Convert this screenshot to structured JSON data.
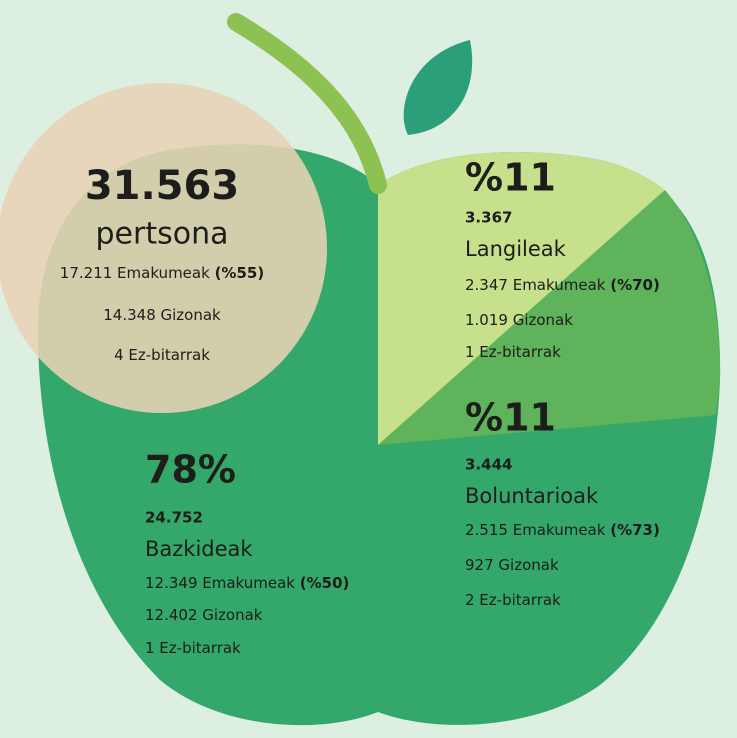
{
  "total": {
    "number": "31.563",
    "unit": "pertsona",
    "lines": [
      {
        "text": "17.211 Emakumeak",
        "bold": "(%55)"
      },
      {
        "text": "14.348 Gizonak"
      },
      {
        "text": "4 Ez-bitarrak"
      }
    ]
  },
  "groups": [
    {
      "percent": "%11",
      "count": "3.367",
      "label": "Langileak",
      "lines": [
        {
          "text": "2.347 Emakumeak",
          "bold": "(%70)"
        },
        {
          "text": "1.019 Gizonak"
        },
        {
          "text": "1 Ez-bitarrak"
        }
      ]
    },
    {
      "percent": "%11",
      "count": "3.444",
      "label": "Boluntarioak",
      "lines": [
        {
          "text": "2.515 Emakumeak",
          "bold": "(%73)"
        },
        {
          "text": "927 Gizonak"
        },
        {
          "text": "2 Ez-bitarrak"
        }
      ]
    },
    {
      "percent": "78%",
      "count": "24.752",
      "label": "Bazkideak",
      "lines": [
        {
          "text": "12.349 Emakumeak",
          "bold": "(%50)"
        },
        {
          "text": "12.402 Gizonak"
        },
        {
          "text": "1 Ez-bitarrak"
        }
      ]
    }
  ]
}
